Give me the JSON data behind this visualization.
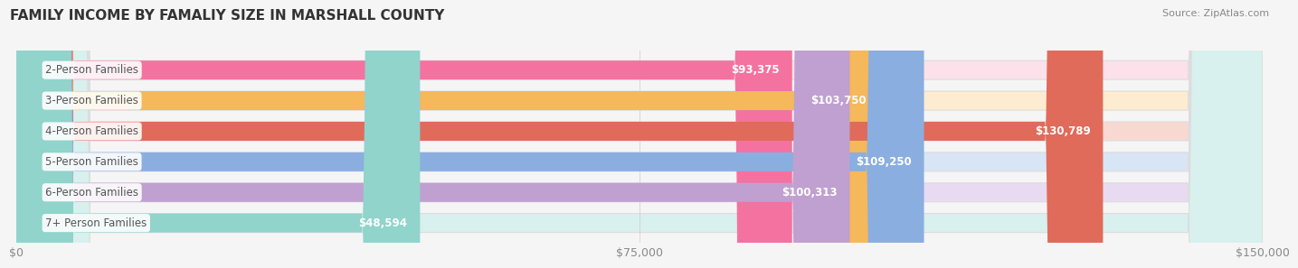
{
  "title": "FAMILY INCOME BY FAMALIY SIZE IN MARSHALL COUNTY",
  "source": "Source: ZipAtlas.com",
  "categories": [
    "2-Person Families",
    "3-Person Families",
    "4-Person Families",
    "5-Person Families",
    "6-Person Families",
    "7+ Person Families"
  ],
  "values": [
    93375,
    103750,
    130789,
    109250,
    100313,
    48594
  ],
  "bar_colors": [
    "#f472a0",
    "#f5b85a",
    "#e06b5a",
    "#8aaee0",
    "#c0a0d0",
    "#90d4cc"
  ],
  "bar_bg_colors": [
    "#fce0ea",
    "#fdecd0",
    "#f9d8d2",
    "#d8e5f5",
    "#e8daf0",
    "#d8f0ee"
  ],
  "value_labels": [
    "$93,375",
    "$103,750",
    "$130,789",
    "$109,250",
    "$100,313",
    "$48,594"
  ],
  "xlim": [
    0,
    150000
  ],
  "xticks": [
    0,
    75000,
    150000
  ],
  "xticklabels": [
    "$0",
    "$75,000",
    "$150,000"
  ],
  "background_color": "#f5f5f5",
  "bar_height": 0.62,
  "label_fontsize": 8.5,
  "value_fontsize": 8.5,
  "title_fontsize": 11
}
